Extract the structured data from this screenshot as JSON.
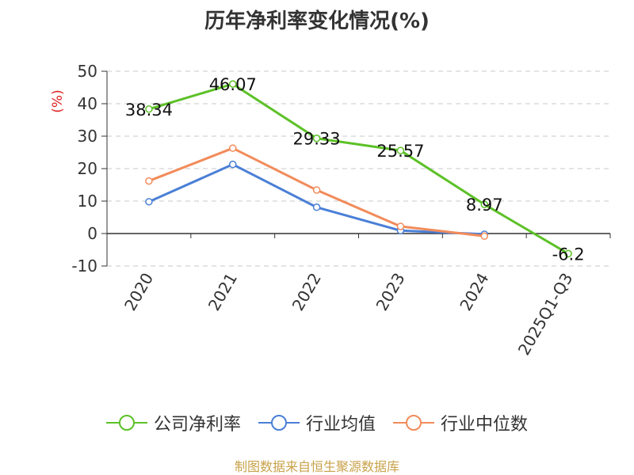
{
  "chart_data": {
    "type": "line",
    "title": "历年净利率变化情况(%)",
    "ylabel": "(%)",
    "categories": [
      "2020",
      "2021",
      "2022",
      "2023",
      "2024",
      "2025Q1-Q3"
    ],
    "ylim": [
      -10,
      50
    ],
    "yticks": [
      -10,
      0,
      10,
      20,
      30,
      40,
      50
    ],
    "grid": true,
    "legend_position": "bottom",
    "series": [
      {
        "name": "公司净利率",
        "color": "#5cc127",
        "values": [
          38.34,
          46.07,
          29.33,
          25.57,
          8.97,
          -6.2
        ],
        "labels": [
          "38.34",
          "46.07",
          "29.33",
          "25.57",
          "8.97",
          "-6.2"
        ]
      },
      {
        "name": "行业均值",
        "color": "#4a7fd6",
        "values": [
          9.8,
          21.3,
          8.1,
          0.9,
          -0.2,
          null
        ]
      },
      {
        "name": "行业中位数",
        "color": "#f28b5a",
        "values": [
          16.2,
          26.3,
          13.4,
          2.2,
          -0.8,
          null
        ]
      }
    ]
  },
  "footer": "制图数据来自恒生聚源数据库"
}
